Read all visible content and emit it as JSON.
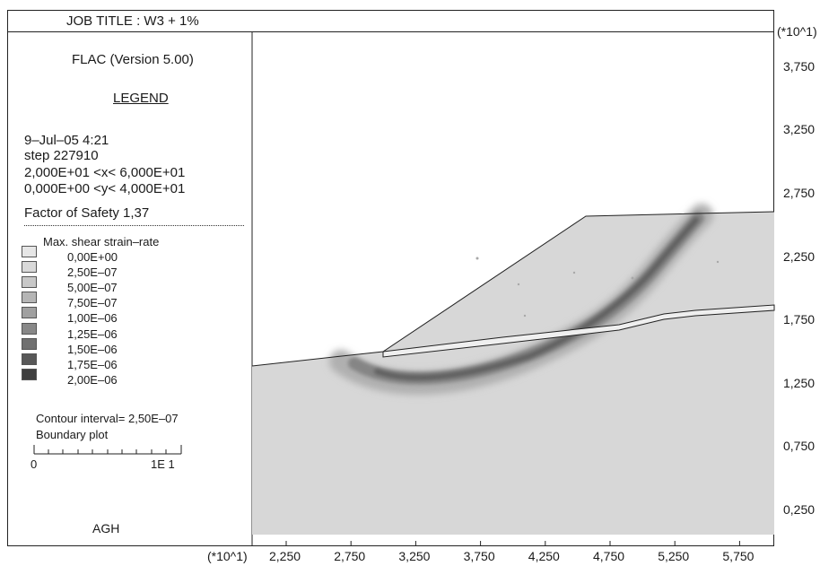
{
  "header": {
    "job_title": "JOB TITLE : W3 + 1%"
  },
  "legend": {
    "program": "FLAC (Version 5.00)",
    "heading": "LEGEND",
    "date_time": "9–Jul–05   4:21",
    "step": "step   227910",
    "x_range": "2,000E+01 <x<  6,000E+01",
    "y_range": "0,000E+00 <y<  4,000E+01",
    "factor_of_safety": "Factor of Safety  1,37",
    "contour_title": "Max. shear strain–rate",
    "contour_levels": [
      "0,00E+00",
      "2,50E–07",
      "5,00E–07",
      "7,50E–07",
      "1,00E–06",
      "1,25E–06",
      "1,50E–06",
      "1,75E–06",
      "2,00E–06"
    ],
    "contour_colors": [
      "#e6e6e6",
      "#d9d9d9",
      "#c8c8c8",
      "#b5b5b5",
      "#a0a0a0",
      "#888888",
      "#707070",
      "#585858",
      "#3f3f3f"
    ],
    "contour_interval": "Contour interval=  2,50E–07",
    "boundary_plot": "Boundary plot",
    "scale_min": "0",
    "scale_max": "1E  1",
    "org": "AGH"
  },
  "axes": {
    "y_multiplier": "(*10^1)",
    "x_multiplier": "(*10^1)",
    "y_ticks": [
      "3,750",
      "3,250",
      "2,750",
      "2,250",
      "1,750",
      "1,250",
      "0,750",
      "0,250"
    ],
    "x_ticks": [
      "2,250",
      "2,750",
      "3,250",
      "3,750",
      "4,250",
      "4,750",
      "5,250",
      "5,750"
    ]
  }
}
